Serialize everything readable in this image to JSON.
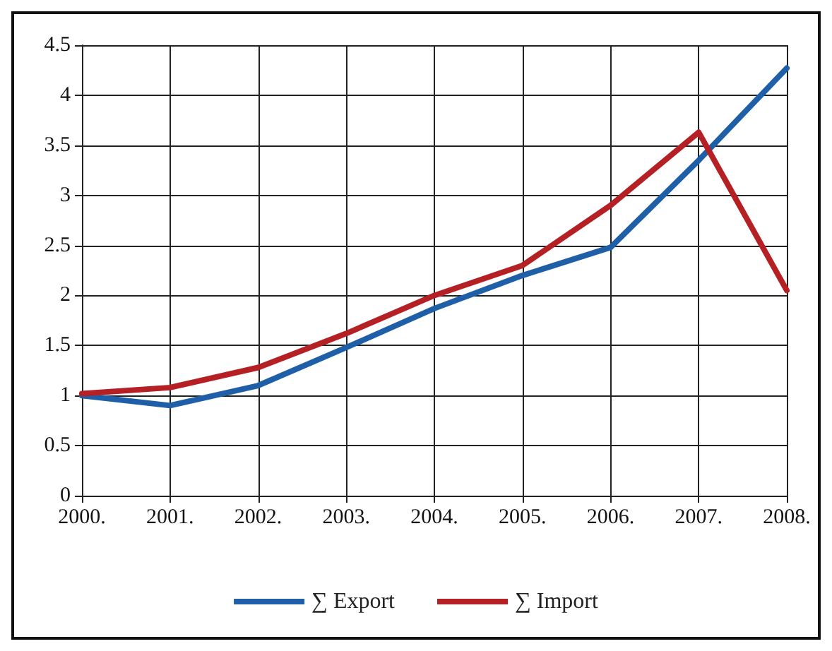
{
  "chart_data": {
    "type": "line",
    "categories": [
      "2000.",
      "2001.",
      "2002.",
      "2003.",
      "2004.",
      "2005.",
      "2006.",
      "2007.",
      "2008."
    ],
    "series": [
      {
        "name": "∑ Export",
        "color": "#1f5fa8",
        "values": [
          1,
          0.9,
          1.1,
          1.48,
          1.87,
          2.2,
          2.48,
          3.35,
          4.27
        ]
      },
      {
        "name": "∑ Import",
        "color": "#b52025",
        "values": [
          1.02,
          1.08,
          1.28,
          1.62,
          2.0,
          2.3,
          2.9,
          3.63,
          2.05
        ]
      }
    ],
    "ylim": [
      0,
      4.5
    ],
    "yticks": [
      0,
      0.5,
      1,
      1.5,
      2,
      2.5,
      3,
      3.5,
      4,
      4.5
    ],
    "grid": true,
    "legend": "bottom",
    "marker": "none",
    "line_style": "solid"
  }
}
